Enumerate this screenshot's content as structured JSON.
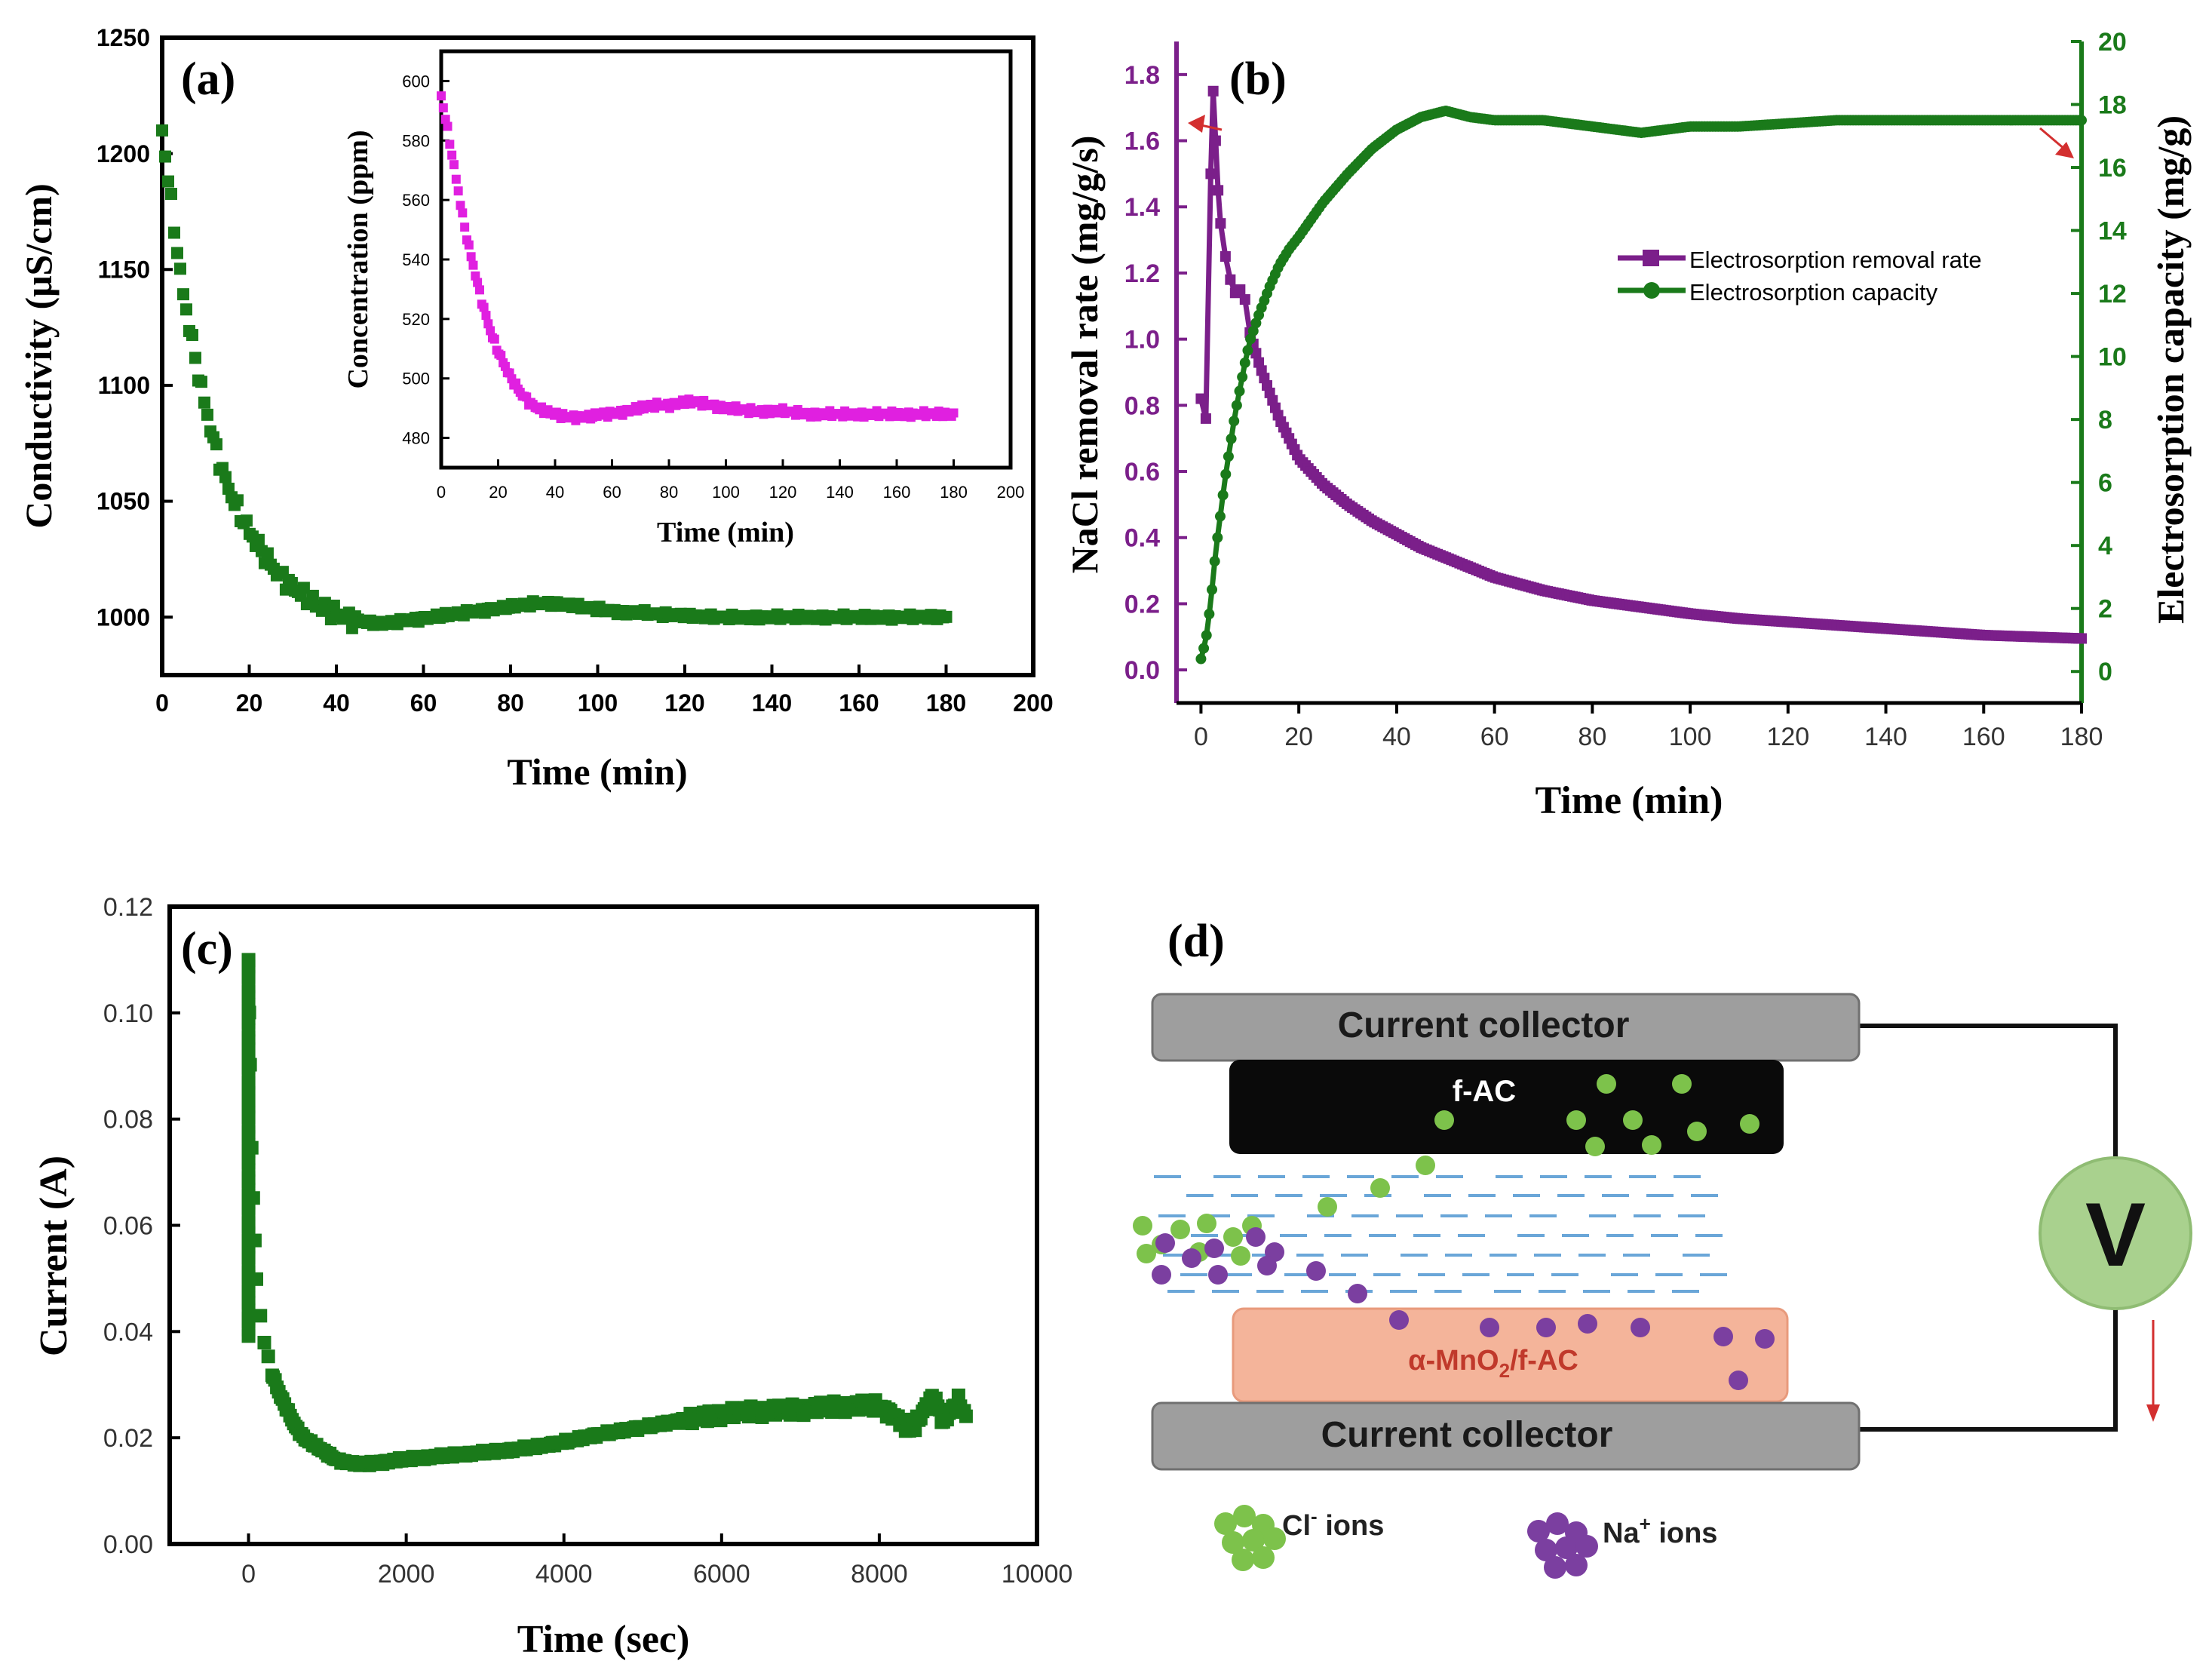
{
  "chart_data": [
    {
      "panel": "a",
      "type": "scatter",
      "label": "(a)",
      "xlabel": "Time (min)",
      "ylabel": "Conductivity (μS/cm)",
      "xlim": [
        0,
        200
      ],
      "ylim": [
        975,
        1250
      ],
      "xticks": [
        0,
        20,
        40,
        60,
        80,
        100,
        120,
        140,
        160,
        180,
        200
      ],
      "yticks": [
        1000,
        1050,
        1100,
        1150,
        1200,
        1250
      ],
      "series": [
        {
          "name": "Conductivity",
          "color": "#1a7a1a",
          "x": [
            0,
            1,
            2,
            3,
            4,
            5,
            6,
            8,
            10,
            12,
            14,
            16,
            18,
            20,
            23,
            26,
            30,
            34,
            38,
            42,
            46,
            50,
            54,
            58,
            62,
            66,
            70,
            74,
            78,
            82,
            86,
            90,
            94,
            98,
            102,
            106,
            110,
            115,
            120,
            125,
            130,
            140,
            150,
            160,
            170,
            180
          ],
          "y": [
            1210,
            1195,
            1180,
            1165,
            1150,
            1138,
            1128,
            1108,
            1090,
            1075,
            1062,
            1052,
            1044,
            1037,
            1028,
            1020,
            1013,
            1007,
            1003,
            1000,
            998,
            997,
            998,
            999,
            1000,
            1001,
            1002,
            1003,
            1004,
            1005,
            1006,
            1006,
            1005,
            1004,
            1003,
            1002,
            1002,
            1001,
            1001,
            1000,
            1000,
            1000,
            1000,
            1000,
            1000,
            1000
          ]
        }
      ]
    },
    {
      "panel": "a-inset",
      "type": "scatter",
      "xlabel": "Time (min)",
      "ylabel": "Concentration (ppm)",
      "xlim": [
        0,
        200
      ],
      "ylim": [
        470,
        610
      ],
      "xticks": [
        0,
        20,
        40,
        60,
        80,
        100,
        120,
        140,
        160,
        180,
        200
      ],
      "yticks": [
        480,
        500,
        520,
        540,
        560,
        580,
        600
      ],
      "series": [
        {
          "name": "Concentration",
          "color": "#e020e0",
          "x": [
            0,
            2,
            4,
            6,
            8,
            10,
            12,
            14,
            16,
            18,
            20,
            24,
            28,
            32,
            36,
            40,
            44,
            48,
            52,
            56,
            60,
            65,
            70,
            75,
            80,
            85,
            90,
            95,
            100,
            110,
            120,
            130,
            140,
            150,
            160,
            170,
            180
          ],
          "y": [
            595,
            585,
            574,
            563,
            552,
            543,
            535,
            527,
            520,
            514,
            509,
            501,
            495,
            491,
            489,
            488,
            487,
            487,
            487,
            488,
            488,
            489,
            490,
            491,
            491,
            492,
            492,
            491,
            490,
            489,
            489,
            488,
            488,
            488,
            488,
            488,
            488
          ]
        }
      ]
    },
    {
      "panel": "b",
      "type": "line",
      "label": "(b)",
      "xlabel": "Time (min)",
      "ylabel_left": "NaCl removal rate (mg/g/s)",
      "ylabel_right": "Electrosorption capacity (mg/g)",
      "xlim": [
        -5,
        180
      ],
      "ylim_left": [
        -0.1,
        1.9
      ],
      "ylim_right": [
        -1,
        20
      ],
      "xticks": [
        0,
        20,
        40,
        60,
        80,
        100,
        120,
        140,
        160,
        180
      ],
      "yticks_left": [
        "0.0",
        "0.2",
        "0.4",
        "0.6",
        "0.8",
        "1.0",
        "1.2",
        "1.4",
        "1.6",
        "1.8"
      ],
      "yticks_right": [
        0,
        2,
        4,
        6,
        8,
        10,
        12,
        14,
        16,
        18,
        20
      ],
      "legend": [
        "Electrosorption removal rate",
        "Electrosorption capacity"
      ],
      "legend_position": "center-right",
      "series": [
        {
          "name": "Electrosorption removal rate",
          "axis": "left",
          "color": "#7b1f8a",
          "x": [
            0,
            1,
            2,
            2.5,
            3,
            3.5,
            4,
            5,
            6,
            7,
            8,
            9,
            10,
            12,
            14,
            16,
            18,
            20,
            25,
            30,
            35,
            40,
            45,
            50,
            55,
            60,
            70,
            80,
            90,
            100,
            110,
            120,
            130,
            140,
            150,
            160,
            170,
            180
          ],
          "y": [
            0.82,
            0.76,
            1.5,
            1.75,
            1.6,
            1.45,
            1.35,
            1.25,
            1.18,
            1.14,
            1.15,
            1.12,
            1.02,
            0.92,
            0.84,
            0.76,
            0.7,
            0.64,
            0.56,
            0.5,
            0.45,
            0.41,
            0.37,
            0.34,
            0.31,
            0.28,
            0.24,
            0.21,
            0.19,
            0.17,
            0.155,
            0.145,
            0.135,
            0.125,
            0.115,
            0.105,
            0.1,
            0.095
          ]
        },
        {
          "name": "Electrosorption capacity",
          "axis": "right",
          "color": "#1a7a1a",
          "x": [
            0,
            1,
            2,
            3,
            4,
            5,
            6,
            7,
            8,
            9,
            10,
            12,
            14,
            16,
            18,
            20,
            25,
            30,
            35,
            40,
            45,
            50,
            55,
            60,
            65,
            70,
            75,
            80,
            85,
            90,
            95,
            100,
            110,
            120,
            130,
            140,
            150,
            160,
            170,
            180
          ],
          "y": [
            0.4,
            1.0,
            2.2,
            3.8,
            5.0,
            6.2,
            7.2,
            8.2,
            9.0,
            9.8,
            10.5,
            11.4,
            12.2,
            12.9,
            13.4,
            13.8,
            14.9,
            15.8,
            16.6,
            17.2,
            17.6,
            17.8,
            17.6,
            17.5,
            17.5,
            17.5,
            17.4,
            17.3,
            17.2,
            17.1,
            17.2,
            17.3,
            17.3,
            17.4,
            17.5,
            17.5,
            17.5,
            17.5,
            17.5,
            17.5
          ]
        }
      ]
    },
    {
      "panel": "c",
      "type": "scatter",
      "label": "(c)",
      "xlabel": "Time (sec)",
      "ylabel": "Current (A)",
      "xlim": [
        -1000,
        10000
      ],
      "ylim": [
        0,
        0.12
      ],
      "xticks": [
        0,
        2000,
        4000,
        6000,
        8000,
        10000
      ],
      "yticks": [
        "0.00",
        "0.02",
        "0.04",
        "0.06",
        "0.08",
        "0.10",
        "0.12"
      ],
      "series": [
        {
          "name": "Current",
          "color": "#1a7a1a",
          "x": [
            0,
            10,
            20,
            40,
            60,
            80,
            100,
            150,
            200,
            250,
            300,
            400,
            500,
            600,
            700,
            800,
            900,
            1000,
            1100,
            1200,
            1400,
            1600,
            1800,
            2000,
            2400,
            2800,
            3200,
            3600,
            4000,
            4400,
            4800,
            5200,
            5600,
            6000,
            6400,
            6800,
            7200,
            7600,
            8000,
            8200,
            8400,
            8600,
            8700,
            8800,
            8900,
            9000,
            9100
          ],
          "y": [
            0.11,
            0.1,
            0.09,
            0.075,
            0.065,
            0.057,
            0.05,
            0.043,
            0.038,
            0.035,
            0.032,
            0.028,
            0.025,
            0.022,
            0.02,
            0.019,
            0.018,
            0.017,
            0.016,
            0.0155,
            0.015,
            0.0152,
            0.0156,
            0.016,
            0.0165,
            0.017,
            0.0175,
            0.0182,
            0.0192,
            0.0205,
            0.0215,
            0.0225,
            0.0235,
            0.0245,
            0.025,
            0.0252,
            0.0256,
            0.026,
            0.026,
            0.024,
            0.021,
            0.026,
            0.028,
            0.023,
            0.025,
            0.027,
            0.024
          ]
        }
      ]
    }
  ],
  "diagram_d": {
    "label": "(d)",
    "top_collector": "Current collector",
    "bottom_collector": "Current collector",
    "top_electrode": "f-AC",
    "bottom_electrode_prefix": "α-MnO",
    "bottom_electrode_sub": "2",
    "bottom_electrode_suffix": "/f-AC",
    "voltage": "V",
    "legend_cl_base": "Cl",
    "legend_cl_sup": "-",
    "legend_cl_word": " ions",
    "legend_na_base": "Na",
    "legend_na_sup": "+",
    "legend_na_word": " ions",
    "colors": {
      "collector": "#9e9e9e",
      "f_ac": "#0a0a0a",
      "mno2": "#f4b49a",
      "mno2_text": "#c0392b",
      "cl_ion": "#7dc24b",
      "na_ion": "#7b3fa0",
      "water_dash": "#6aa6d8",
      "voltmeter": "#a9d18e",
      "arrow": "#d32f2f"
    }
  }
}
